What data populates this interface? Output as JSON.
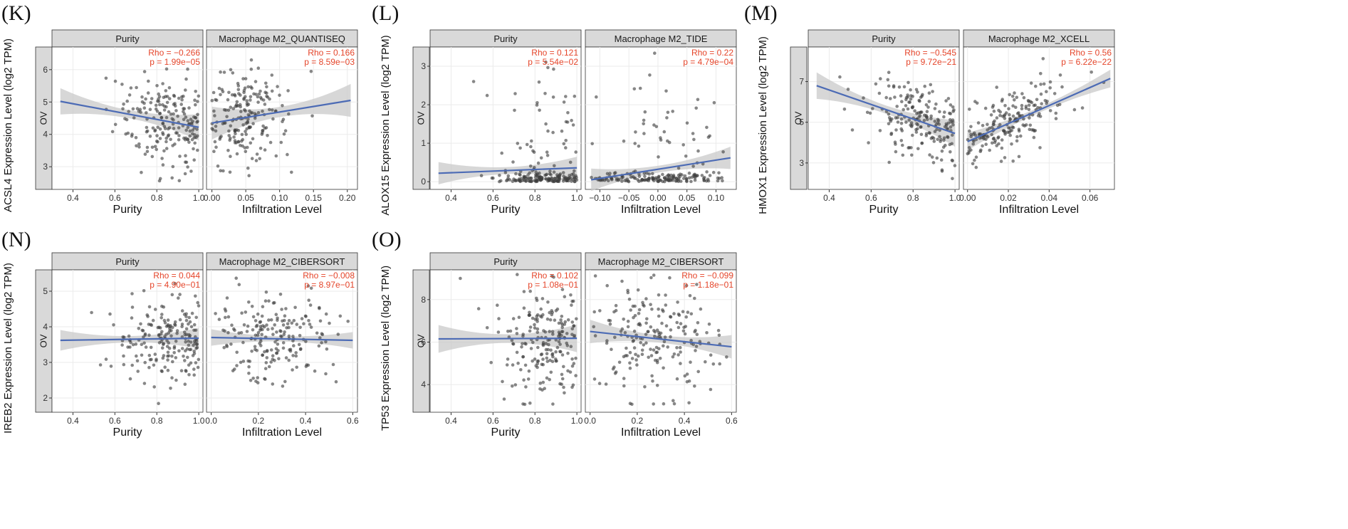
{
  "chart_data": [
    {
      "label": "(K)",
      "type": "scatter",
      "cancer": "OV",
      "ylabel": "ACSL4 Expression Level (log2 TPM)",
      "ylim": [
        2.3,
        6.7
      ],
      "yticks": [
        3,
        4,
        5,
        6
      ],
      "facets": [
        {
          "strip": "Purity",
          "xlabel": "Purity",
          "xlim": [
            0.3,
            1.02
          ],
          "xticks": [
            0.4,
            0.6,
            0.8,
            1.0
          ],
          "xtick_labels": [
            "0.4",
            "0.6",
            "0.8",
            "1.0"
          ],
          "rho": "Rho = −0.266",
          "p": "p = 1.99e−05",
          "fit": [
            [
              0.34,
              5.02
            ],
            [
              1.0,
              4.22
            ]
          ],
          "band": 0.28,
          "cloud": {
            "xc": 0.85,
            "xs": 0.12,
            "xmin": 0.34,
            "xmax": 1.0,
            "spread": 0.75,
            "n": 200
          }
        },
        {
          "strip": "Macrophage M2_QUANTISEQ",
          "xlabel": "Infiltration Level",
          "xlim": [
            -0.008,
            0.215
          ],
          "xticks": [
            0.0,
            0.05,
            0.1,
            0.15,
            0.2
          ],
          "xtick_labels": [
            "0.00",
            "0.05",
            "0.10",
            "0.15",
            "0.20"
          ],
          "rho": "Rho = 0.166",
          "p": "p = 8.59e−03",
          "fit": [
            [
              0.0,
              4.35
            ],
            [
              0.205,
              5.05
            ]
          ],
          "band": 0.35,
          "cloud": {
            "xc": 0.05,
            "xs": 0.03,
            "xmin": 0.0,
            "xmax": 0.205,
            "spread": 0.75,
            "n": 200
          }
        }
      ]
    },
    {
      "label": "(L)",
      "type": "scatter",
      "cancer": "OV",
      "ylabel": "ALOX15 Expression Level (log2 TPM)",
      "ylim": [
        -0.2,
        3.5
      ],
      "yticks": [
        0,
        1,
        2,
        3
      ],
      "facets": [
        {
          "strip": "Purity",
          "xlabel": "Purity",
          "xlim": [
            0.3,
            1.02
          ],
          "xticks": [
            0.4,
            0.6,
            0.8,
            1.0
          ],
          "xtick_labels": [
            "0.4",
            "0.6",
            "0.8",
            "1.0"
          ],
          "rho": "Rho = 0.121",
          "p": "p = 5.54e−02",
          "fit": [
            [
              0.34,
              0.22
            ],
            [
              1.0,
              0.36
            ]
          ],
          "band": 0.2,
          "cloud": {
            "xc": 0.85,
            "xs": 0.12,
            "xmin": 0.34,
            "xmax": 1.0,
            "spread": 0.12,
            "n": 200,
            "skew": true
          }
        },
        {
          "strip": "Macrophage M2_TIDE",
          "xlabel": "Infiltration Level",
          "xlim": [
            -0.125,
            0.135
          ],
          "xticks": [
            -0.1,
            -0.05,
            0.0,
            0.05,
            0.1
          ],
          "xtick_labels": [
            "−0.10",
            "−0.05",
            "0.00",
            "0.05",
            "0.10"
          ],
          "rho": "Rho = 0.22",
          "p": "p = 4.79e−04",
          "fit": [
            [
              -0.115,
              0.05
            ],
            [
              0.125,
              0.62
            ]
          ],
          "band": 0.2,
          "cloud": {
            "xc": 0.0,
            "xs": 0.06,
            "xmin": -0.115,
            "xmax": 0.125,
            "spread": 0.12,
            "n": 200,
            "skew": true
          }
        }
      ]
    },
    {
      "label": "(M)",
      "type": "scatter",
      "cancer": "OV",
      "ylabel": "HMOX1 Expression Level (log2 TPM)",
      "ylim": [
        1.7,
        8.7
      ],
      "yticks": [
        3,
        5,
        7
      ],
      "facets": [
        {
          "strip": "Purity",
          "xlabel": "Purity",
          "xlim": [
            0.3,
            1.02
          ],
          "xticks": [
            0.4,
            0.6,
            0.8,
            1.0
          ],
          "xtick_labels": [
            "0.4",
            "0.6",
            "0.8",
            "1.0"
          ],
          "rho": "Rho = −0.545",
          "p": "p = 9.72e−21",
          "fit": [
            [
              0.34,
              6.8
            ],
            [
              1.0,
              4.45
            ]
          ],
          "band": 0.45,
          "cloud": {
            "xc": 0.85,
            "xs": 0.12,
            "xmin": 0.34,
            "xmax": 1.0,
            "spread": 0.9,
            "n": 200
          }
        },
        {
          "strip": "Macrophage M2_XCELL",
          "xlabel": "Infiltration Level",
          "xlim": [
            -0.002,
            0.072
          ],
          "xticks": [
            0.0,
            0.02,
            0.04,
            0.06
          ],
          "xtick_labels": [
            "0.00",
            "0.02",
            "0.04",
            "0.06"
          ],
          "rho": "Rho = 0.56",
          "p": "p = 6.22e−22",
          "fit": [
            [
              0.0,
              4.05
            ],
            [
              0.07,
              7.15
            ]
          ],
          "band": 0.3,
          "cloud": {
            "xc": 0.02,
            "xs": 0.014,
            "xmin": 0.0,
            "xmax": 0.07,
            "spread": 0.75,
            "n": 200
          }
        }
      ]
    },
    {
      "label": "(N)",
      "type": "scatter",
      "cancer": "OV",
      "ylabel": "IREB2 Expression Level (log2 TPM)",
      "ylim": [
        1.6,
        5.6
      ],
      "yticks": [
        2,
        3,
        4,
        5
      ],
      "facets": [
        {
          "strip": "Purity",
          "xlabel": "Purity",
          "xlim": [
            0.3,
            1.02
          ],
          "xticks": [
            0.4,
            0.6,
            0.8,
            1.0
          ],
          "xtick_labels": [
            "0.4",
            "0.6",
            "0.8",
            "1.0"
          ],
          "rho": "Rho = 0.044",
          "p": "p = 4.90e−01",
          "fit": [
            [
              0.34,
              3.62
            ],
            [
              1.0,
              3.68
            ]
          ],
          "band": 0.2,
          "cloud": {
            "xc": 0.85,
            "xs": 0.12,
            "xmin": 0.34,
            "xmax": 1.0,
            "spread": 0.6,
            "n": 200
          }
        },
        {
          "strip": "Macrophage M2_CIBERSORT",
          "xlabel": "Infiltration Level",
          "xlim": [
            -0.02,
            0.62
          ],
          "xticks": [
            0.0,
            0.2,
            0.4,
            0.6
          ],
          "xtick_labels": [
            "0.0",
            "0.2",
            "0.4",
            "0.6"
          ],
          "rho": "Rho = −0.008",
          "p": "p = 8.97e−01",
          "fit": [
            [
              0.0,
              3.7
            ],
            [
              0.6,
              3.62
            ]
          ],
          "band": 0.16,
          "cloud": {
            "xc": 0.28,
            "xs": 0.13,
            "xmin": 0.0,
            "xmax": 0.6,
            "spread": 0.6,
            "n": 200
          }
        }
      ]
    },
    {
      "label": "(O)",
      "type": "scatter",
      "cancer": "OV",
      "ylabel": "TP53 Expression Level (log2 TPM)",
      "ylim": [
        2.7,
        9.4
      ],
      "yticks": [
        4,
        6,
        8
      ],
      "facets": [
        {
          "strip": "Purity",
          "xlabel": "Purity",
          "xlim": [
            0.3,
            1.02
          ],
          "xticks": [
            0.4,
            0.6,
            0.8,
            1.0
          ],
          "xtick_labels": [
            "0.4",
            "0.6",
            "0.8",
            "1.0"
          ],
          "rho": "Rho = 0.102",
          "p": "p = 1.08e−01",
          "fit": [
            [
              0.34,
              6.15
            ],
            [
              1.0,
              6.18
            ]
          ],
          "band": 0.45,
          "cloud": {
            "xc": 0.85,
            "xs": 0.12,
            "xmin": 0.34,
            "xmax": 1.0,
            "spread": 1.35,
            "n": 200
          }
        },
        {
          "strip": "Macrophage M2_CIBERSORT",
          "xlabel": "Infiltration Level",
          "xlim": [
            -0.02,
            0.62
          ],
          "xticks": [
            0.0,
            0.2,
            0.4,
            0.6
          ],
          "xtick_labels": [
            "0.0",
            "0.2",
            "0.4",
            "0.6"
          ],
          "rho": "Rho = −0.099",
          "p": "p = 1.18e−01",
          "fit": [
            [
              0.0,
              6.5
            ],
            [
              0.6,
              5.78
            ]
          ],
          "band": 0.38,
          "cloud": {
            "xc": 0.28,
            "xs": 0.13,
            "xmin": 0.0,
            "xmax": 0.6,
            "spread": 1.35,
            "n": 200
          }
        }
      ]
    }
  ],
  "colors": {
    "line": "#4c6bb5",
    "band": "#c9c9c9",
    "point": "#3d3d3d",
    "strip": "#d9d9d9",
    "grid": "#ebebeb",
    "stat": "#e5452a"
  }
}
